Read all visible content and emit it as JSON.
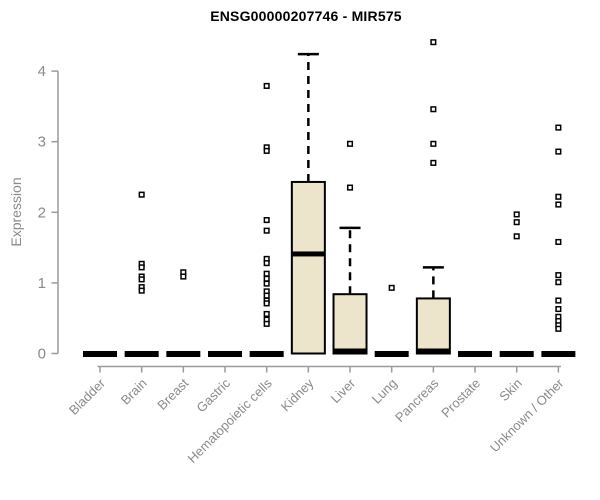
{
  "chart_data": {
    "type": "boxplot",
    "title": "ENSG00000207746 - MIR575",
    "xlabel": "",
    "ylabel": "Expression",
    "ylim": [
      0,
      4.45
    ],
    "yticks": [
      0,
      1,
      2,
      3,
      4
    ],
    "grid": false,
    "legend": "none",
    "categories": [
      "Bladder",
      "Brain",
      "Breast",
      "Gastric",
      "Hematopoietic cells",
      "Kidney",
      "Liver",
      "Lung",
      "Pancreas",
      "Prostate",
      "Skin",
      "Unknown / Other"
    ],
    "series": [
      {
        "category": "Bladder",
        "q1": 0,
        "median": 0,
        "q3": 0,
        "whisker_low": 0,
        "whisker_high": 0,
        "outliers": []
      },
      {
        "category": "Brain",
        "q1": 0,
        "median": 0,
        "q3": 0,
        "whisker_low": 0,
        "whisker_high": 0,
        "outliers": [
          2.25,
          1.27,
          1.22,
          1.09,
          1.05,
          0.94,
          0.89
        ]
      },
      {
        "category": "Breast",
        "q1": 0,
        "median": 0,
        "q3": 0,
        "whisker_low": 0,
        "whisker_high": 0,
        "outliers": [
          1.15,
          1.09
        ]
      },
      {
        "category": "Gastric",
        "q1": 0,
        "median": 0,
        "q3": 0,
        "whisker_low": 0,
        "whisker_high": 0,
        "outliers": []
      },
      {
        "category": "Hematopoietic cells",
        "q1": 0,
        "median": 0,
        "q3": 0,
        "whisker_low": 0,
        "whisker_high": 0,
        "outliers": [
          3.79,
          2.92,
          2.87,
          1.89,
          1.74,
          1.34,
          1.28,
          1.13,
          1.06,
          0.99,
          0.88,
          0.82,
          0.75,
          0.71,
          0.56,
          0.48,
          0.42
        ]
      },
      {
        "category": "Kidney",
        "q1": 0,
        "median": 1.41,
        "q3": 2.43,
        "whisker_low": 0,
        "whisker_high": 4.24,
        "outliers": []
      },
      {
        "category": "Liver",
        "q1": 0,
        "median": 0,
        "q3": 0.84,
        "whisker_low": 0,
        "whisker_high": 1.78,
        "outliers": [
          2.97,
          2.35
        ]
      },
      {
        "category": "Lung",
        "q1": 0,
        "median": 0,
        "q3": 0,
        "whisker_low": 0,
        "whisker_high": 0,
        "outliers": [
          0.93
        ]
      },
      {
        "category": "Pancreas",
        "q1": 0,
        "median": 0,
        "q3": 0.78,
        "whisker_low": 0,
        "whisker_high": 1.22,
        "outliers": [
          4.41,
          3.46,
          2.97,
          2.7
        ]
      },
      {
        "category": "Prostate",
        "q1": 0,
        "median": 0,
        "q3": 0,
        "whisker_low": 0,
        "whisker_high": 0,
        "outliers": []
      },
      {
        "category": "Skin",
        "q1": 0,
        "median": 0,
        "q3": 0,
        "whisker_low": 0,
        "whisker_high": 0,
        "outliers": [
          1.97,
          1.86,
          1.66
        ]
      },
      {
        "category": "Unknown / Other",
        "q1": 0,
        "median": 0,
        "q3": 0,
        "whisker_low": 0,
        "whisker_high": 0,
        "outliers": [
          3.2,
          2.86,
          2.22,
          2.11,
          1.58,
          1.11,
          1.01,
          0.75,
          0.63,
          0.52,
          0.46,
          0.4,
          0.35
        ]
      }
    ],
    "colors": {
      "box_fill": "#EDE5CB",
      "box_stroke": "#000000",
      "median": "#000000",
      "whisker": "#000000",
      "outlier_stroke": "#000000",
      "outlier_fill": "#FFFFFF",
      "axis_line": "#9A9A9A",
      "axis_text": "#8A8A8A",
      "title": "#000000",
      "background": "#FFFFFF"
    }
  }
}
